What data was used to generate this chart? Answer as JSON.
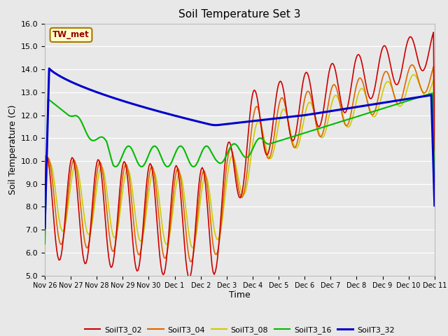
{
  "title": "Soil Temperature Set 3",
  "xlabel": "Time",
  "ylabel": "Soil Temperature (C)",
  "ylim": [
    5.0,
    16.0
  ],
  "yticks": [
    5.0,
    6.0,
    7.0,
    8.0,
    9.0,
    10.0,
    11.0,
    12.0,
    13.0,
    14.0,
    15.0,
    16.0
  ],
  "series_colors": {
    "SoilT3_02": "#cc0000",
    "SoilT3_04": "#dd6600",
    "SoilT3_08": "#cccc00",
    "SoilT3_16": "#00bb00",
    "SoilT3_32": "#0000cc"
  },
  "tw_met_box_color": "#ffffcc",
  "tw_met_text_color": "#990000",
  "background_color": "#e8e8e8",
  "grid_color": "#ffffff",
  "xtick_labels": [
    "Nov 26",
    "Nov 27",
    "Nov 28",
    "Nov 29",
    "Nov 30",
    "Dec 1",
    "Dec 2",
    "Dec 3",
    "Dec 4",
    "Dec 5",
    "Dec 6",
    "Dec 7",
    "Dec 8",
    "Dec 9",
    "Dec 10",
    "Dec 11"
  ],
  "n_days": 15,
  "n_points": 360
}
